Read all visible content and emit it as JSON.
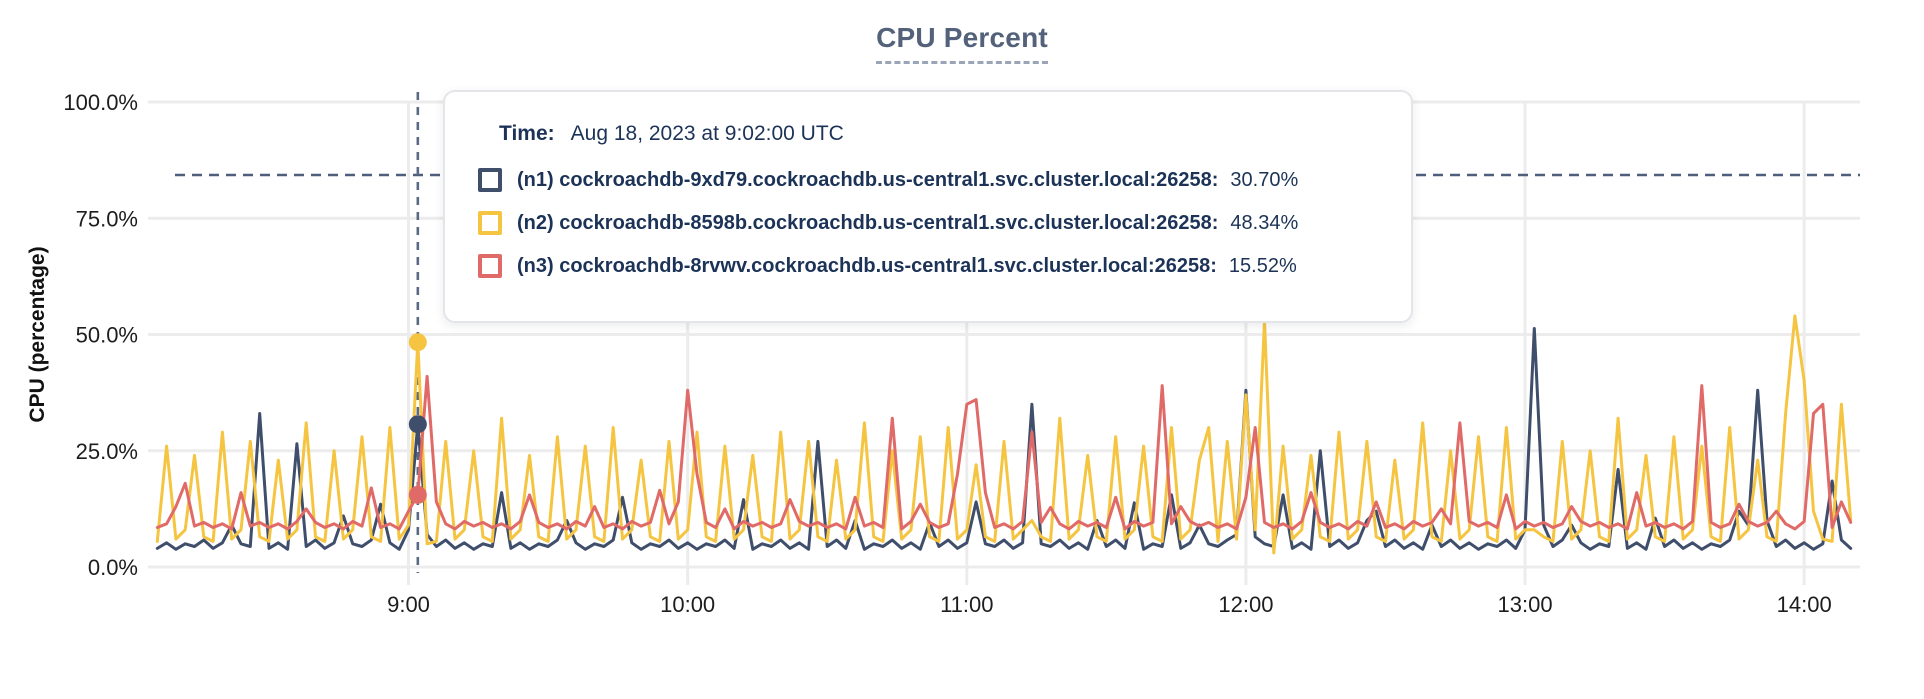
{
  "title": "CPU Percent",
  "tooltip": {
    "time_label": "Time:",
    "time_value": "Aug 18, 2023 at 9:02:00 UTC"
  },
  "colors": {
    "grid": "#ececec",
    "axis_text": "#1d1d1f",
    "title": "#53617b",
    "crosshair": "#5a6a85",
    "threshold": "#4f5e7b",
    "tooltip_text": "#1c3357",
    "tooltip_border": "#e4e5e9",
    "background": "#ffffff"
  },
  "chart_data": {
    "type": "line",
    "title": "CPU Percent",
    "xlabel": "",
    "ylabel": "CPU (percentage)",
    "ylim": [
      0,
      100
    ],
    "grid": true,
    "legend_position": "tooltip",
    "y_ticks": [
      {
        "value": 0,
        "label": "0.0%"
      },
      {
        "value": 25,
        "label": "25.0%"
      },
      {
        "value": 50,
        "label": "50.0%"
      },
      {
        "value": 75,
        "label": "75.0%"
      },
      {
        "value": 100,
        "label": "100.0%"
      }
    ],
    "x_domain_minutes": [
      484,
      852
    ],
    "x_ticks": [
      {
        "minute": 540,
        "label": "9:00"
      },
      {
        "minute": 600,
        "label": "10:00"
      },
      {
        "minute": 660,
        "label": "11:00"
      },
      {
        "minute": 720,
        "label": "12:00"
      },
      {
        "minute": 780,
        "label": "13:00"
      },
      {
        "minute": 840,
        "label": "14:00"
      }
    ],
    "x_start_minute": 486,
    "x_step_minutes": 2,
    "threshold_percent": 84.3,
    "hover": {
      "minute": 542,
      "time": "9:02:00 UTC",
      "values": {
        "n1": 30.7,
        "n2": 48.34,
        "n3": 15.52
      }
    },
    "series": [
      {
        "id": "n1",
        "label": "(n1) cockroachdb-9xd79.cockroachdb.us-central1.svc.cluster.local:26258:",
        "value_label": "30.70%",
        "color": "#3f4e6b",
        "values": [
          4,
          5.2,
          3.8,
          5,
          4.4,
          5.8,
          4,
          5.2,
          9,
          5,
          4.4,
          33,
          4,
          5.2,
          3.8,
          26.5,
          4.4,
          5.8,
          4,
          5.2,
          11,
          5,
          4.4,
          5.8,
          13.5,
          5.2,
          3.8,
          8,
          30.7,
          7,
          4.4,
          5.8,
          4,
          5.2,
          3.8,
          5,
          4.4,
          16,
          4,
          5.2,
          3.8,
          5,
          4.4,
          5.8,
          10,
          5.2,
          3.8,
          5,
          4.4,
          5.8,
          15,
          5.2,
          3.8,
          5,
          4.4,
          5.8,
          4,
          5.2,
          3.8,
          5,
          4.4,
          5.8,
          4,
          14.5,
          3.8,
          5,
          4.4,
          5.8,
          4,
          5.2,
          3.8,
          27,
          4.4,
          5.8,
          4,
          10,
          3.8,
          5,
          4.4,
          5.8,
          4,
          5.2,
          3.8,
          9.5,
          4.4,
          5.8,
          4,
          5.2,
          14,
          5,
          4.4,
          5.8,
          4,
          5.2,
          35,
          5,
          4.4,
          5.8,
          4,
          5.2,
          3.8,
          10,
          4.4,
          5.8,
          4,
          13.8,
          3.8,
          5,
          4.4,
          15.5,
          4,
          5.2,
          9,
          5,
          4.4,
          5.8,
          7,
          38,
          6.5,
          5,
          4.4,
          15.5,
          4,
          5.2,
          3.8,
          25,
          4.4,
          5.8,
          4,
          5.2,
          10,
          12,
          4.4,
          5.8,
          4,
          5.2,
          3.8,
          9,
          4.4,
          5.8,
          4,
          5.2,
          3.8,
          5,
          4.4,
          5.8,
          4,
          8,
          51.3,
          9,
          4.4,
          5.8,
          9,
          5.2,
          3.8,
          5,
          4.4,
          21,
          4,
          5.2,
          3.8,
          10.5,
          4.4,
          5.8,
          4,
          5.2,
          3.8,
          5,
          4.4,
          5.8,
          12,
          9,
          38,
          10,
          4.4,
          5.8,
          4,
          5.2,
          3.8,
          5,
          18.5,
          5.8,
          4
        ]
      },
      {
        "id": "n2",
        "label": "(n2) cockroachdb-8598b.cockroachdb.us-central1.svc.cluster.local:26258:",
        "value_label": "48.34%",
        "color": "#f5c542",
        "values": [
          5.5,
          26,
          6,
          8,
          24,
          6.5,
          5.5,
          29,
          6,
          8,
          27,
          6.5,
          5.5,
          23,
          6,
          8,
          31,
          6.5,
          5.5,
          25,
          6,
          8,
          28,
          6.5,
          5.5,
          30,
          6,
          9,
          48.34,
          5,
          5.5,
          27,
          6,
          8,
          25,
          6.5,
          5.5,
          32,
          6,
          8,
          24,
          6.5,
          5.5,
          28,
          6,
          8,
          26,
          6.5,
          5.5,
          30,
          6,
          8,
          23,
          6.5,
          5.5,
          27,
          6,
          8,
          29,
          6.5,
          5.5,
          26,
          6,
          8,
          24,
          6.5,
          5.5,
          29,
          6,
          8,
          27,
          6.5,
          5.5,
          23,
          6,
          8,
          31,
          6.5,
          5.5,
          25,
          6,
          8,
          28,
          6.5,
          5.5,
          30,
          6,
          8,
          22,
          6.5,
          5.5,
          27,
          6,
          8,
          10,
          6.5,
          5.5,
          32,
          6,
          8,
          24,
          6.5,
          5.5,
          28,
          6,
          8,
          26,
          6.5,
          5.5,
          30,
          6,
          8,
          23,
          30,
          5.5,
          27,
          6,
          37,
          8,
          53,
          3,
          26,
          6,
          8,
          24,
          6.5,
          5.5,
          29,
          6,
          8,
          27,
          6.5,
          5.5,
          23,
          6,
          8,
          31,
          6.5,
          5.5,
          25,
          6,
          8,
          28,
          6.5,
          5.5,
          30,
          6,
          8,
          8,
          6.5,
          5.5,
          27,
          6,
          8,
          25,
          6.5,
          5.5,
          32,
          6,
          8,
          24,
          6.5,
          5.5,
          28,
          6,
          8,
          26,
          6.5,
          5.5,
          30,
          6,
          8,
          23,
          6.5,
          5.5,
          33,
          54,
          40,
          12,
          6,
          5.5,
          35,
          10
        ]
      },
      {
        "id": "n3",
        "label": "(n3) cockroachdb-8rvwv.cockroachdb.us-central1.svc.cluster.local:26258:",
        "value_label": "15.52%",
        "color": "#e06a68",
        "values": [
          8.5,
          9.3,
          13,
          18,
          8.8,
          9.6,
          8.5,
          9.3,
          8.2,
          16,
          8.8,
          9.6,
          8.5,
          9.3,
          8.2,
          9.8,
          12.5,
          9.6,
          8.5,
          9.3,
          8.2,
          9.8,
          8.8,
          17,
          8.5,
          9.3,
          8.2,
          12,
          15.52,
          41,
          14,
          9.3,
          8.2,
          9.8,
          8.8,
          9.6,
          8.5,
          9.3,
          8.2,
          9.8,
          15.5,
          9.6,
          8.5,
          9.3,
          8.2,
          9.8,
          8.8,
          13,
          8.5,
          9.3,
          8.2,
          9.8,
          8.8,
          9.6,
          16.5,
          9.3,
          14,
          38,
          20,
          9.6,
          8.5,
          12.5,
          8.2,
          9.8,
          8.8,
          9.6,
          8.5,
          9.3,
          14.5,
          9.8,
          8.8,
          9.6,
          8.5,
          9.3,
          8.2,
          15,
          8.8,
          9.6,
          8.5,
          32,
          8.2,
          9.8,
          13.5,
          9.6,
          8.5,
          9.3,
          20,
          35,
          36,
          16,
          8.5,
          9.3,
          8.2,
          9.8,
          29,
          9.6,
          12.8,
          9.3,
          8.2,
          9.8,
          8.8,
          9.6,
          8.5,
          15,
          8.2,
          9.8,
          8.8,
          9.6,
          39,
          9.3,
          13,
          9.8,
          8.8,
          9.6,
          8.5,
          9.3,
          8.2,
          15,
          30,
          9.6,
          8.5,
          9.3,
          8.2,
          9.8,
          16,
          9.6,
          8.5,
          9.3,
          8.2,
          9.8,
          8.8,
          14,
          8.5,
          9.3,
          8.2,
          9.8,
          8.8,
          9.6,
          12.5,
          9.3,
          31,
          9.8,
          8.8,
          9.6,
          8.5,
          15.5,
          8.2,
          9.8,
          8.8,
          9.6,
          8.5,
          9.3,
          13,
          9.8,
          8.8,
          9.6,
          8.5,
          9.3,
          8.2,
          16,
          8.8,
          9.6,
          8.5,
          9.3,
          8.2,
          9.8,
          39,
          9.6,
          8.5,
          9.3,
          13.5,
          9.8,
          8.8,
          9.6,
          12,
          9.3,
          8.2,
          9.8,
          33,
          35,
          8.5,
          14,
          9.6
        ]
      }
    ]
  }
}
